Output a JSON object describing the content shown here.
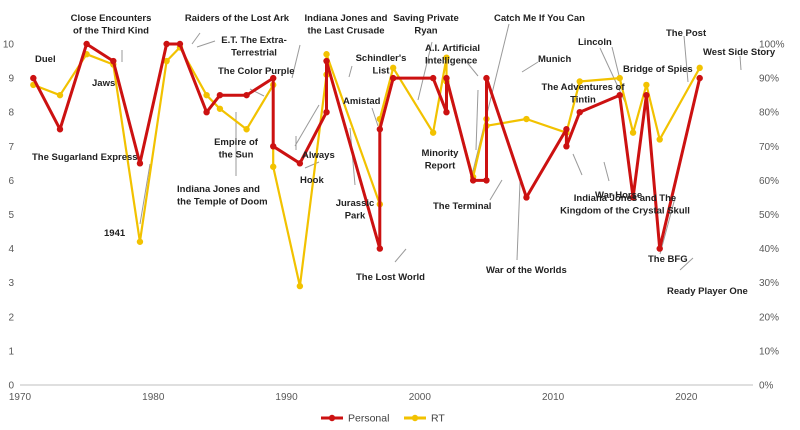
{
  "chart_data": {
    "type": "line",
    "title": "",
    "xlabel": "",
    "ylabel": "",
    "xlim": [
      1970,
      2025
    ],
    "ylim": [
      0,
      10
    ],
    "y2lim": [
      0,
      100
    ],
    "grid": false,
    "legend_position": "bottom-center",
    "colors": {
      "personal": "#cc1111",
      "rt": "#f2c200",
      "leader": "#9a9a9a",
      "axis": "#bfbfbf"
    },
    "x_ticks": [
      1970,
      1980,
      1990,
      2000,
      2010,
      2020
    ],
    "y_ticks": [
      0,
      1,
      2,
      3,
      4,
      5,
      6,
      7,
      8,
      9,
      10
    ],
    "y2_ticks": [
      "0%",
      "10%",
      "20%",
      "30%",
      "40%",
      "50%",
      "60%",
      "70%",
      "80%",
      "90%",
      "100%"
    ],
    "series": [
      {
        "name": "Personal",
        "axis": "left",
        "points": [
          [
            1971,
            9
          ],
          [
            1973,
            7.5
          ],
          [
            1975,
            10
          ],
          [
            1977,
            9.5
          ],
          [
            1979,
            6.5
          ],
          [
            1981,
            10
          ],
          [
            1982,
            10
          ],
          [
            1984,
            8
          ],
          [
            1985,
            8.5
          ],
          [
            1987,
            8.5
          ],
          [
            1989,
            9
          ],
          [
            1989,
            7
          ],
          [
            1991,
            6.5
          ],
          [
            1993,
            8
          ],
          [
            1993,
            9.5
          ],
          [
            1997,
            4
          ],
          [
            1997,
            7.5
          ],
          [
            1998,
            9
          ],
          [
            2001,
            9
          ],
          [
            2002,
            8
          ],
          [
            2002,
            9
          ],
          [
            2004,
            6
          ],
          [
            2005,
            6
          ],
          [
            2005,
            9
          ],
          [
            2008,
            5.5
          ],
          [
            2011,
            7.5
          ],
          [
            2011,
            7
          ],
          [
            2012,
            8
          ],
          [
            2015,
            8.5
          ],
          [
            2016,
            5.5
          ],
          [
            2017,
            8.5
          ],
          [
            2018,
            4
          ],
          [
            2021,
            9
          ]
        ]
      },
      {
        "name": "RT",
        "axis": "right",
        "points": [
          [
            1971,
            88
          ],
          [
            1973,
            85
          ],
          [
            1975,
            97
          ],
          [
            1977,
            94
          ],
          [
            1979,
            42
          ],
          [
            1981,
            95
          ],
          [
            1982,
            99
          ],
          [
            1984,
            85
          ],
          [
            1985,
            81
          ],
          [
            1987,
            75
          ],
          [
            1989,
            88
          ],
          [
            1989,
            64
          ],
          [
            1991,
            29
          ],
          [
            1993,
            91
          ],
          [
            1993,
            97
          ],
          [
            1997,
            53
          ],
          [
            1997,
            78
          ],
          [
            1998,
            93
          ],
          [
            2001,
            74
          ],
          [
            2002,
            96
          ],
          [
            2002,
            89
          ],
          [
            2004,
            61
          ],
          [
            2005,
            78
          ],
          [
            2005,
            76
          ],
          [
            2008,
            78
          ],
          [
            2011,
            74
          ],
          [
            2011,
            74
          ],
          [
            2012,
            89
          ],
          [
            2015,
            90
          ],
          [
            2016,
            74
          ],
          [
            2017,
            88
          ],
          [
            2018,
            72
          ],
          [
            2021,
            93
          ]
        ]
      }
    ],
    "annotations": [
      {
        "id": "duel",
        "lines": [
          "Duel"
        ]
      },
      {
        "id": "sugarland",
        "lines": [
          "The Sugarland Express"
        ]
      },
      {
        "id": "jaws",
        "lines": [
          "Jaws"
        ]
      },
      {
        "id": "close-encounters",
        "lines": [
          "Close Encounters",
          "of the Third Kind"
        ]
      },
      {
        "id": "1941",
        "lines": [
          "1941"
        ]
      },
      {
        "id": "raiders",
        "lines": [
          "Raiders of the Lost Ark"
        ]
      },
      {
        "id": "et",
        "lines": [
          "E.T. The Extra-",
          "Terrestrial"
        ]
      },
      {
        "id": "temple-of-doom",
        "lines": [
          "Indiana Jones and",
          "the Temple of Doom"
        ]
      },
      {
        "id": "color-purple",
        "lines": [
          "The Color Purple"
        ]
      },
      {
        "id": "empire-of-the-sun",
        "lines": [
          "Empire of",
          "the Sun"
        ]
      },
      {
        "id": "last-crusade",
        "lines": [
          "Indiana Jones and",
          "the Last Crusade"
        ]
      },
      {
        "id": "always",
        "lines": [
          "Always"
        ]
      },
      {
        "id": "hook",
        "lines": [
          "Hook"
        ]
      },
      {
        "id": "jurassic-park",
        "lines": [
          "Jurassic",
          "Park"
        ]
      },
      {
        "id": "schindlers-list",
        "lines": [
          "Schindler's",
          "List"
        ]
      },
      {
        "id": "the-lost-world",
        "lines": [
          "The Lost World"
        ]
      },
      {
        "id": "amistad",
        "lines": [
          "Amistad"
        ]
      },
      {
        "id": "saving-private-ryan",
        "lines": [
          "Saving Private",
          "Ryan"
        ]
      },
      {
        "id": "ai",
        "lines": [
          "A.I. Artificial",
          "Intelligence"
        ]
      },
      {
        "id": "minority-report",
        "lines": [
          "Minority",
          "Report"
        ]
      },
      {
        "id": "catch-me",
        "lines": [
          "Catch Me If You Can"
        ]
      },
      {
        "id": "the-terminal",
        "lines": [
          "The Terminal"
        ]
      },
      {
        "id": "war-of-the-worlds",
        "lines": [
          "War of the Worlds"
        ]
      },
      {
        "id": "munich",
        "lines": [
          "Munich"
        ]
      },
      {
        "id": "crystal-skull",
        "lines": [
          "Indiana Jones and The",
          "Kingdom of the Crystal Skull"
        ]
      },
      {
        "id": "tintin",
        "lines": [
          "The Adventures of",
          "Tintin"
        ]
      },
      {
        "id": "war-horse",
        "lines": [
          "War Horse"
        ]
      },
      {
        "id": "lincoln",
        "lines": [
          "Lincoln"
        ]
      },
      {
        "id": "bridge-of-spies",
        "lines": [
          "Bridge of Spies"
        ]
      },
      {
        "id": "the-bfg",
        "lines": [
          "The BFG"
        ]
      },
      {
        "id": "the-post",
        "lines": [
          "The Post"
        ]
      },
      {
        "id": "ready-player-one",
        "lines": [
          "Ready Player One"
        ]
      },
      {
        "id": "west-side-story",
        "lines": [
          "West Side Story"
        ]
      }
    ]
  }
}
